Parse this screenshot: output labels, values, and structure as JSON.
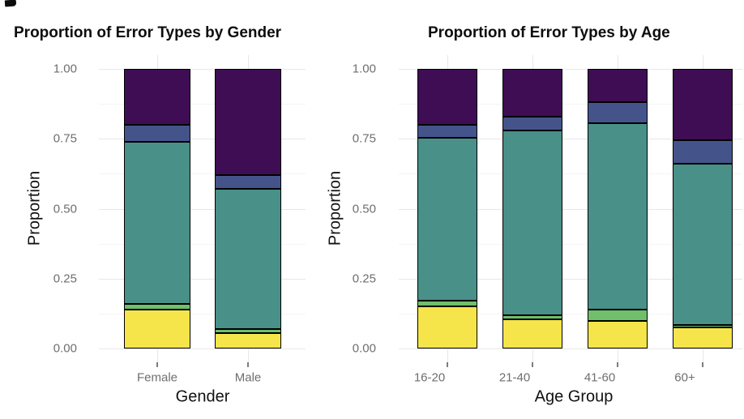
{
  "corner_mark": "ink-smudge",
  "colors": {
    "purple": "#3f0d54",
    "blue": "#44548b",
    "teal": "#499089",
    "green": "#6fbf6b",
    "yellow": "#f6e54a",
    "bar_outline": "#000000",
    "grid_major": "#e7e7e7",
    "grid_minor": "#f4f4f4",
    "tick_text": "#6e6e6e",
    "title_text": "#0d0d0d"
  },
  "chart_data": [
    {
      "type": "bar",
      "stacked": true,
      "title": "Proportion of Error Types by Gender",
      "xlabel": "Gender",
      "ylabel": "Proportion",
      "ylim": [
        0,
        1
      ],
      "yticks": [
        0,
        0.25,
        0.5,
        0.75,
        1.0
      ],
      "ytick_labels": [
        "1.00",
        "0.75",
        "0.50",
        "0.25",
        "0.00"
      ],
      "grid": "horizontal major+minor, vertical stubs at category centers",
      "legend": "none",
      "categories": [
        "Female",
        "Male"
      ],
      "series": [
        {
          "name": "error-type-yellow",
          "color": "#f6e54a",
          "values": [
            0.14,
            0.055
          ]
        },
        {
          "name": "error-type-green",
          "color": "#6fbf6b",
          "values": [
            0.02,
            0.015
          ]
        },
        {
          "name": "error-type-teal",
          "color": "#499089",
          "values": [
            0.58,
            0.5
          ]
        },
        {
          "name": "error-type-blue",
          "color": "#44548b",
          "values": [
            0.06,
            0.05
          ]
        },
        {
          "name": "error-type-purple",
          "color": "#3f0d54",
          "values": [
            0.2,
            0.38
          ]
        }
      ]
    },
    {
      "type": "bar",
      "stacked": true,
      "title": "Proportion of Error Types by Age",
      "xlabel": "Age Group",
      "ylabel": "Proportion",
      "ylim": [
        0,
        1
      ],
      "yticks": [
        0,
        0.25,
        0.5,
        0.75,
        1.0
      ],
      "ytick_labels": [
        "1.00",
        "0.75",
        "0.50",
        "0.25",
        "0.00"
      ],
      "grid": "horizontal major+minor, vertical stubs at category centers",
      "legend": "none",
      "categories": [
        "16-20",
        "21-40",
        "41-60",
        "60+"
      ],
      "series": [
        {
          "name": "error-type-yellow",
          "color": "#f6e54a",
          "values": [
            0.15,
            0.105,
            0.1,
            0.075
          ]
        },
        {
          "name": "error-type-green",
          "color": "#6fbf6b",
          "values": [
            0.02,
            0.015,
            0.04,
            0.01
          ]
        },
        {
          "name": "error-type-teal",
          "color": "#499089",
          "values": [
            0.585,
            0.66,
            0.665,
            0.575
          ]
        },
        {
          "name": "error-type-blue",
          "color": "#44548b",
          "values": [
            0.045,
            0.05,
            0.075,
            0.085
          ]
        },
        {
          "name": "error-type-purple",
          "color": "#3f0d54",
          "values": [
            0.2,
            0.17,
            0.12,
            0.255
          ]
        }
      ]
    }
  ]
}
